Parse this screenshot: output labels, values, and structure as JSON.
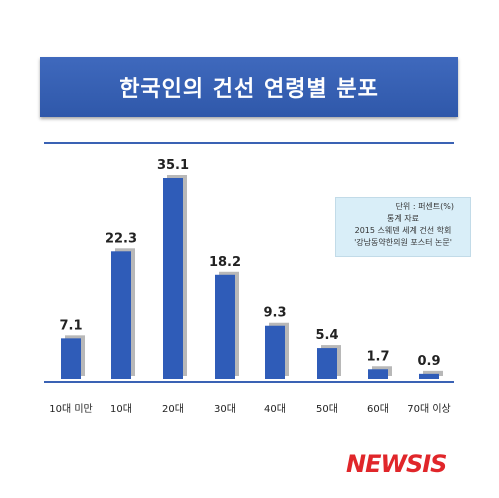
{
  "title": "한국인의 건선 연령별 분포",
  "note": {
    "unit": "단위 : 퍼센트(%)",
    "source": "통계 자료",
    "line3": "2015 스웨덴 세계 건선 학회",
    "line4": "'강남동약한의원 포스터 논문'"
  },
  "logo": "NEWSIS",
  "colors": {
    "bar": "#2f5cb8",
    "bar_shadow": "#b8b8b8",
    "banner": "#3a62b4",
    "rule": "#3a62b4",
    "logo": "#e0262a"
  },
  "chart_data": {
    "type": "bar",
    "title": "한국인의 건선 연령별 분포",
    "categories": [
      "10대 미만",
      "10대",
      "20대",
      "30대",
      "40대",
      "50대",
      "60대",
      "70대 이상"
    ],
    "values": [
      7.1,
      22.3,
      35.1,
      18.2,
      9.3,
      5.4,
      1.7,
      0.9
    ],
    "value_labels": [
      "7.1",
      "22.3",
      "35.1",
      "18.2",
      "9.3",
      "5.4",
      "1.7",
      "0.9"
    ],
    "ylim": [
      0,
      35.1
    ],
    "grid": false,
    "legend": "none"
  }
}
